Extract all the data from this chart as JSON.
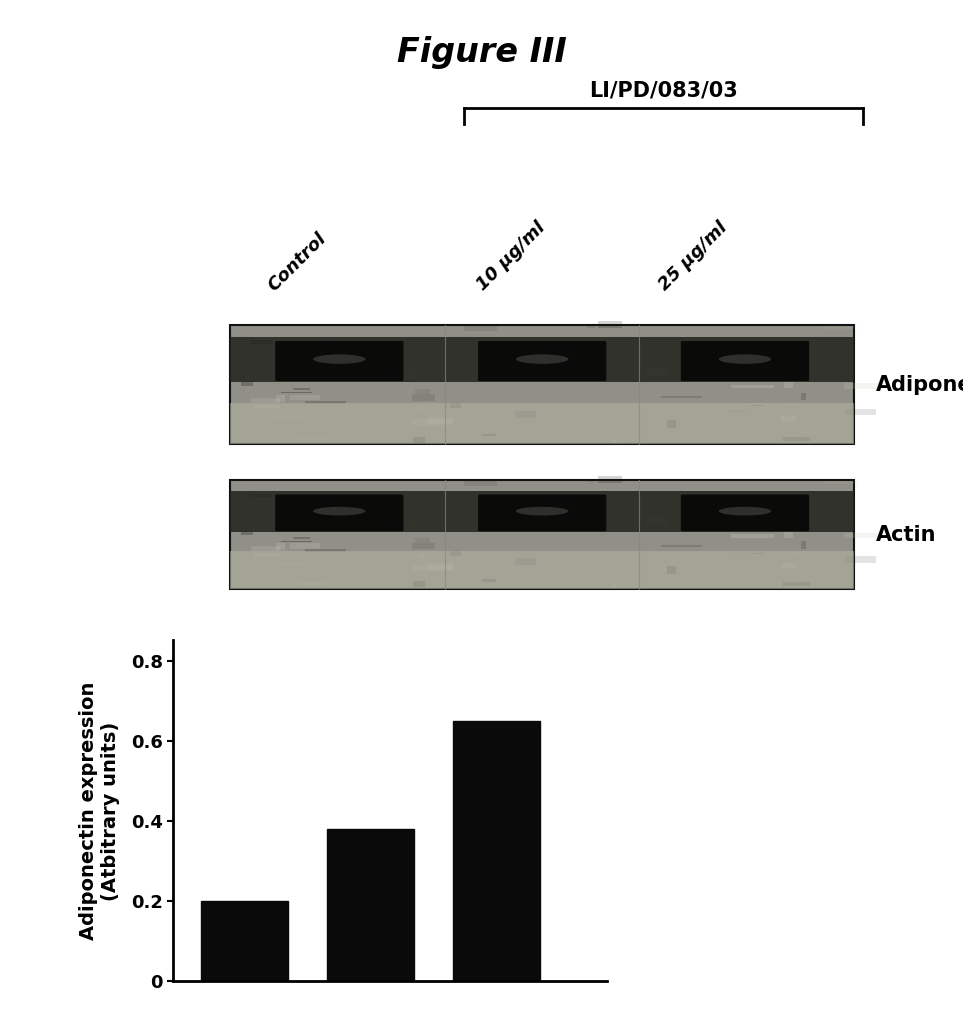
{
  "title": "Figure III",
  "title_fontsize": 24,
  "title_fontweight": "bold",
  "bracket_label": "LI/PD/083/03",
  "bracket_label_fontsize": 15,
  "bracket_label_fontweight": "bold",
  "col_labels": [
    "Control",
    "10 μg/ml",
    "25 μg/ml"
  ],
  "col_labels_fontsize": 13,
  "blot_labels": [
    "Adiponectin",
    "Actin"
  ],
  "blot_labels_fontsize": 15,
  "bar_values": [
    0.2,
    0.38,
    0.65
  ],
  "bar_color": "#0a0a0a",
  "bar_width": 0.55,
  "ylabel_line1": "Adiponectin expression",
  "ylabel_line2": "(Atbitrary units)",
  "ylabel_fontsize": 14,
  "ylabel_fontweight": "bold",
  "yticks": [
    0,
    0.2,
    0.4,
    0.6,
    0.8
  ],
  "ylim": [
    0,
    0.85
  ],
  "background_color": "#ffffff",
  "blot_bg_light": "#a8a8a0",
  "blot_bg_dark": "#505048",
  "blot_band_color": "#0d0d0d",
  "blot_border_color": "#000000"
}
